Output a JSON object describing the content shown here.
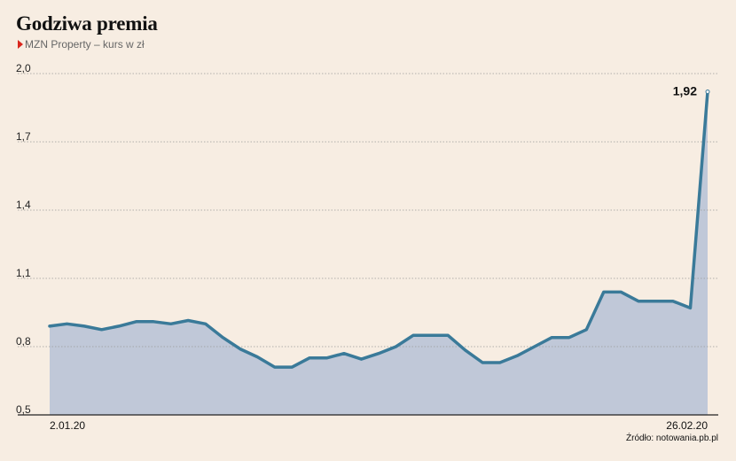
{
  "header": {
    "title": "Godziwa premia",
    "subtitle": "MZN Property – kurs w zł"
  },
  "source": "Źródło: notowania.pb.pl",
  "colors": {
    "background": "#f7ede2",
    "line": "#3a7a99",
    "area": "#c0c8d8",
    "marker": "#d9261c"
  },
  "chart_data": {
    "type": "area",
    "title": "Godziwa premia",
    "subtitle": "MZN Property – kurs w zł",
    "xlabel": "",
    "ylabel": "",
    "x_tick_labels": [
      "2.01.20",
      "26.02.20"
    ],
    "y_ticks": [
      "0,5",
      "0,8",
      "1,1",
      "1,4",
      "1,7",
      "2,0"
    ],
    "ylim": [
      0.5,
      2.0
    ],
    "grid": true,
    "series": [
      {
        "values": [
          0.89,
          0.9,
          0.89,
          0.875,
          0.89,
          0.91,
          0.91,
          0.9,
          0.915,
          0.9,
          0.84,
          0.79,
          0.755,
          0.71,
          0.71,
          0.75,
          0.75,
          0.77,
          0.745,
          0.77,
          0.8,
          0.85,
          0.85,
          0.85,
          0.785,
          0.73,
          0.73,
          0.76,
          0.8,
          0.84,
          0.84,
          0.875,
          1.04,
          1.04,
          1.0,
          1.0,
          1.0,
          0.97,
          1.92
        ]
      }
    ],
    "annotations": [
      {
        "text": "1,92",
        "value": 1.92
      }
    ]
  }
}
